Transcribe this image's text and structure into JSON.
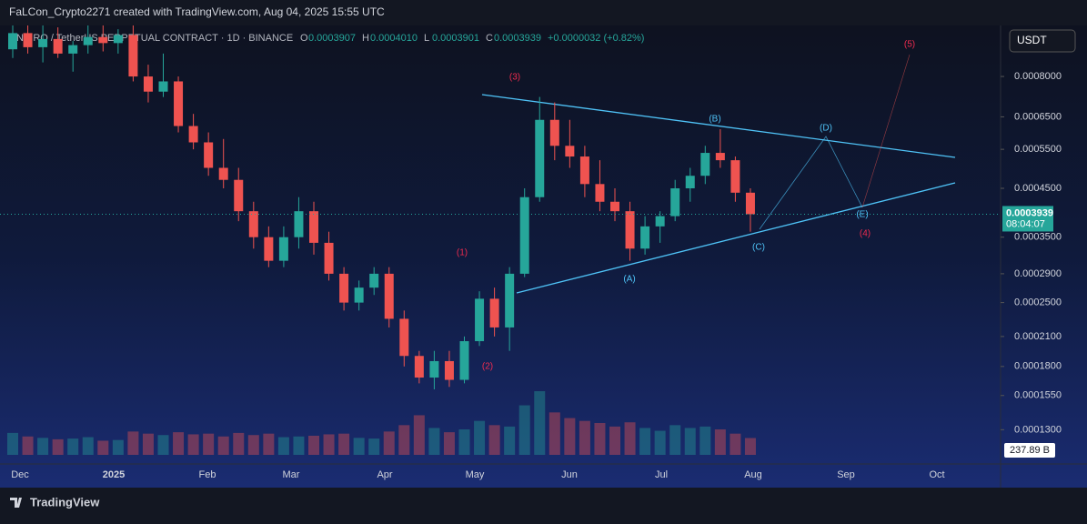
{
  "header": {
    "attribution": "FaLCon_Crypto2271 created with TradingView.com, Aug 04, 2025 15:55 UTC",
    "symbol": "NEIRO / TetherUS PERPETUAL CONTRACT · 1D · BINANCE",
    "ohlc": [
      {
        "label": "O",
        "value": "0.0003907"
      },
      {
        "label": "H",
        "value": "0.0004010"
      },
      {
        "label": "L",
        "value": "0.0003901"
      },
      {
        "label": "C",
        "value": "0.0003939"
      }
    ],
    "change": "+0.0000032 (+0.82%)",
    "currency": "USDT"
  },
  "chart_data": {
    "type": "candlestick",
    "log_scale": true,
    "up_color": "#26a69a",
    "down_color": "#ef5350",
    "ylim": [
      0.000109,
      0.00104
    ],
    "yticks": [
      {
        "value": 0.0008,
        "label": "0.0008000"
      },
      {
        "value": 0.00065,
        "label": "0.0006500"
      },
      {
        "value": 0.00055,
        "label": "0.0005500"
      },
      {
        "value": 0.00045,
        "label": "0.0004500"
      },
      {
        "value": 0.00035,
        "label": "0.0003500"
      },
      {
        "value": 0.00029,
        "label": "0.0002900"
      },
      {
        "value": 0.00025,
        "label": "0.0002500"
      },
      {
        "value": 0.00021,
        "label": "0.0002100"
      },
      {
        "value": 0.00018,
        "label": "0.0001800"
      },
      {
        "value": 0.000155,
        "label": "0.0001550"
      },
      {
        "value": 0.00013,
        "label": "0.0001300"
      }
    ],
    "x_axis_labels": [
      "Dec",
      "2025",
      "Feb",
      "Mar",
      "Apr",
      "May",
      "Jun",
      "Jul",
      "Aug",
      "Sep",
      "Oct"
    ],
    "open": [
      0.00092,
      0.001,
      0.00093,
      0.00097,
      0.0009,
      0.00094,
      0.00098,
      0.00095,
      0.00099,
      0.0008,
      0.00074,
      0.00078,
      0.00062,
      0.00057,
      0.0005,
      0.00047,
      0.0004,
      0.00035,
      0.00031,
      0.00035,
      0.0004,
      0.00034,
      0.00029,
      0.00025,
      0.00027,
      0.00029,
      0.00023,
      0.00019,
      0.00017,
      0.000185,
      0.000168,
      0.000205,
      0.000255,
      0.00022,
      0.00029,
      0.00043,
      0.00064,
      0.00056,
      0.00053,
      0.00046,
      0.00042,
      0.0004,
      0.00033,
      0.00037,
      0.00039,
      0.00045,
      0.00048,
      0.00054,
      0.00052,
      0.00044
    ],
    "high": [
      0.00104,
      0.00104,
      0.00104,
      0.00103,
      0.00096,
      0.00104,
      0.00104,
      0.00102,
      0.00104,
      0.00085,
      0.0009,
      0.0008,
      0.00066,
      0.0006,
      0.00058,
      0.0005,
      0.00042,
      0.00037,
      0.00037,
      0.00043,
      0.00042,
      0.00036,
      0.0003,
      0.00028,
      0.0003,
      0.0003,
      0.00024,
      0.000195,
      0.000195,
      0.000195,
      0.00021,
      0.000265,
      0.00027,
      0.0003,
      0.00045,
      0.00072,
      0.0007,
      0.00064,
      0.00056,
      0.00052,
      0.00045,
      0.00042,
      0.00039,
      0.0004,
      0.00047,
      0.0005,
      0.00056,
      0.00061,
      0.00053,
      0.00045
    ],
    "low": [
      0.00088,
      0.0009,
      0.00086,
      0.00088,
      0.00082,
      0.0009,
      0.00091,
      0.0009,
      0.00078,
      0.0007,
      0.00072,
      0.0006,
      0.00055,
      0.00048,
      0.00045,
      0.00038,
      0.00033,
      0.0003,
      0.0003,
      0.00033,
      0.00032,
      0.00028,
      0.00024,
      0.00024,
      0.00026,
      0.00022,
      0.00018,
      0.000165,
      0.00016,
      0.000162,
      0.000165,
      0.0002,
      0.00021,
      0.000195,
      0.000285,
      0.00042,
      0.00052,
      0.0005,
      0.00043,
      0.0004,
      0.00038,
      0.00031,
      0.00032,
      0.00034,
      0.00038,
      0.00042,
      0.00046,
      0.0005,
      0.00042,
      0.00036
    ],
    "close": [
      0.001,
      0.00093,
      0.00097,
      0.0009,
      0.00094,
      0.00098,
      0.00095,
      0.00099,
      0.0008,
      0.00074,
      0.00078,
      0.00062,
      0.00057,
      0.0005,
      0.00047,
      0.0004,
      0.00035,
      0.00031,
      0.00035,
      0.0004,
      0.00034,
      0.00029,
      0.00025,
      0.00027,
      0.00029,
      0.00023,
      0.00019,
      0.00017,
      0.000185,
      0.000168,
      0.000205,
      0.000255,
      0.00022,
      0.00029,
      0.00043,
      0.00064,
      0.00056,
      0.00053,
      0.00046,
      0.00042,
      0.0004,
      0.00033,
      0.00037,
      0.00039,
      0.00045,
      0.00048,
      0.00054,
      0.00052,
      0.00044,
      0.0003939
    ],
    "volume": [
      310,
      260,
      240,
      220,
      230,
      250,
      200,
      210,
      330,
      300,
      280,
      320,
      290,
      300,
      260,
      310,
      280,
      300,
      250,
      260,
      270,
      290,
      300,
      240,
      230,
      330,
      420,
      560,
      380,
      320,
      360,
      480,
      420,
      400,
      700,
      900,
      600,
      520,
      480,
      450,
      400,
      460,
      380,
      340,
      420,
      380,
      400,
      360,
      300,
      237.89
    ],
    "volume_label": "237.89 B",
    "price_label": "0.0003939",
    "countdown": "08:04:07",
    "wave_labels": [
      "(1)",
      "(2)",
      "(3)",
      "(4)",
      "(5)",
      "(A)",
      "(B)",
      "(C)",
      "(D)",
      "(E)"
    ]
  },
  "footer": {
    "brand": "TradingView"
  }
}
